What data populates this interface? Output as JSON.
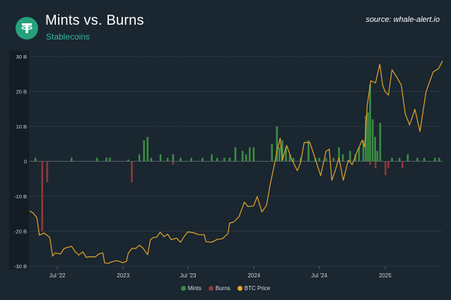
{
  "header": {
    "logo_icon": "tether-logo-icon",
    "title": "Mints vs. Burns",
    "subtitle": "Stablecoins",
    "source": "source: whale-alert.io"
  },
  "colors": {
    "background": "#1a2630",
    "mints": "#3c8c44",
    "burns": "#8c3a3a",
    "btc_price": "#e7a52a",
    "grid": "#3a4650",
    "accent": "#35b8a0"
  },
  "chart_data": {
    "type": "bar",
    "y_axis": {
      "ticks": [
        30,
        20,
        10,
        0,
        -10,
        -20,
        -30
      ],
      "tick_labels": [
        "30 B",
        "20 B",
        "10 B",
        "0",
        "-10 B",
        "-20 B",
        "-30 B"
      ],
      "ylim": [
        -30,
        30
      ],
      "unit": "B"
    },
    "x_axis": {
      "tick_labels": [
        "Jul '22",
        "2023",
        "Jul '23",
        "2024",
        "Jul '24",
        "2025"
      ],
      "tick_dates": [
        "2022-07-01",
        "2023-01-01",
        "2023-07-01",
        "2024-01-01",
        "2024-07-01",
        "2025-01-01"
      ],
      "range": [
        "2022-04-15",
        "2025-06-10"
      ]
    },
    "grid": true,
    "legend_position": "bottom-center",
    "series": [
      {
        "name": "Mints",
        "bar_type": "mints",
        "points": [
          [
            "2022-05-01",
            1
          ],
          [
            "2022-08-10",
            1
          ],
          [
            "2022-10-20",
            1
          ],
          [
            "2022-11-15",
            1
          ],
          [
            "2022-11-25",
            1
          ],
          [
            "2023-01-15",
            0.5
          ],
          [
            "2023-02-15",
            2
          ],
          [
            "2023-02-28",
            6
          ],
          [
            "2023-03-10",
            7
          ],
          [
            "2023-03-20",
            1
          ],
          [
            "2023-04-15",
            2
          ],
          [
            "2023-05-05",
            1
          ],
          [
            "2023-05-20",
            2
          ],
          [
            "2023-06-10",
            1
          ],
          [
            "2023-07-10",
            1
          ],
          [
            "2023-08-10",
            1
          ],
          [
            "2023-09-05",
            2
          ],
          [
            "2023-09-20",
            1
          ],
          [
            "2023-10-10",
            1
          ],
          [
            "2023-10-25",
            1
          ],
          [
            "2023-11-10",
            4
          ],
          [
            "2023-11-30",
            3
          ],
          [
            "2023-12-10",
            2
          ],
          [
            "2023-12-20",
            4
          ],
          [
            "2023-12-31",
            4
          ],
          [
            "2024-02-20",
            5
          ],
          [
            "2024-03-05",
            10
          ],
          [
            "2024-03-12",
            4
          ],
          [
            "2024-03-20",
            6
          ],
          [
            "2024-03-30",
            4
          ],
          [
            "2024-04-10",
            2
          ],
          [
            "2024-04-20",
            1
          ],
          [
            "2024-05-10",
            1
          ],
          [
            "2024-06-01",
            6
          ],
          [
            "2024-06-20",
            1
          ],
          [
            "2024-07-01",
            1
          ],
          [
            "2024-07-20",
            1
          ],
          [
            "2024-08-10",
            1
          ],
          [
            "2024-08-25",
            4
          ],
          [
            "2024-09-05",
            2
          ],
          [
            "2024-09-25",
            3
          ],
          [
            "2024-10-10",
            2
          ],
          [
            "2024-10-20",
            4
          ],
          [
            "2024-11-01",
            6
          ],
          [
            "2024-11-08",
            13
          ],
          [
            "2024-11-14",
            14
          ],
          [
            "2024-11-20",
            22
          ],
          [
            "2024-11-27",
            12
          ],
          [
            "2024-12-04",
            7
          ],
          [
            "2024-12-10",
            3
          ],
          [
            "2024-12-18",
            11
          ],
          [
            "2025-01-20",
            1
          ],
          [
            "2025-02-10",
            1
          ],
          [
            "2025-03-05",
            2
          ],
          [
            "2025-04-01",
            1
          ],
          [
            "2025-04-20",
            1
          ],
          [
            "2025-05-20",
            1
          ],
          [
            "2025-06-01",
            1
          ]
        ]
      },
      {
        "name": "Burns",
        "bar_type": "burns",
        "points": [
          [
            "2022-05-20",
            -20
          ],
          [
            "2022-06-03",
            -6
          ],
          [
            "2023-01-25",
            -6
          ],
          [
            "2023-05-20",
            -1
          ],
          [
            "2024-11-20",
            -1
          ],
          [
            "2024-12-05",
            -2
          ],
          [
            "2025-01-02",
            -4
          ],
          [
            "2025-01-10",
            -2
          ],
          [
            "2025-02-18",
            -2
          ]
        ]
      },
      {
        "name": "BTC Price",
        "line_type": "btc_price",
        "axis_note": "secondary scale, no axis printed",
        "btc_ylim": [
          15000,
          110000
        ],
        "points": [
          [
            "2022-04-15",
            40000
          ],
          [
            "2022-04-25",
            39000
          ],
          [
            "2022-05-05",
            37000
          ],
          [
            "2022-05-12",
            29000
          ],
          [
            "2022-05-25",
            30000
          ],
          [
            "2022-06-10",
            28000
          ],
          [
            "2022-06-18",
            19500
          ],
          [
            "2022-06-25",
            21000
          ],
          [
            "2022-07-10",
            20500
          ],
          [
            "2022-07-20",
            23000
          ],
          [
            "2022-07-30",
            23500
          ],
          [
            "2022-08-10",
            24000
          ],
          [
            "2022-08-20",
            21500
          ],
          [
            "2022-08-30",
            20000
          ],
          [
            "2022-09-10",
            21500
          ],
          [
            "2022-09-20",
            19000
          ],
          [
            "2022-10-01",
            19300
          ],
          [
            "2022-10-15",
            19200
          ],
          [
            "2022-10-25",
            20500
          ],
          [
            "2022-11-05",
            21000
          ],
          [
            "2022-11-10",
            16500
          ],
          [
            "2022-11-20",
            16200
          ],
          [
            "2022-12-01",
            17000
          ],
          [
            "2022-12-15",
            17500
          ],
          [
            "2022-12-31",
            16550
          ],
          [
            "2023-01-10",
            17200
          ],
          [
            "2023-01-15",
            20800
          ],
          [
            "2023-01-25",
            23000
          ],
          [
            "2023-02-05",
            23000
          ],
          [
            "2023-02-15",
            24500
          ],
          [
            "2023-02-25",
            23200
          ],
          [
            "2023-03-10",
            20200
          ],
          [
            "2023-03-18",
            26900
          ],
          [
            "2023-03-25",
            27900
          ],
          [
            "2023-04-05",
            28200
          ],
          [
            "2023-04-14",
            30400
          ],
          [
            "2023-04-25",
            28300
          ],
          [
            "2023-05-05",
            29500
          ],
          [
            "2023-05-15",
            27000
          ],
          [
            "2023-05-30",
            27700
          ],
          [
            "2023-06-10",
            25800
          ],
          [
            "2023-06-20",
            28400
          ],
          [
            "2023-06-30",
            30500
          ],
          [
            "2023-07-15",
            30200
          ],
          [
            "2023-07-30",
            29300
          ],
          [
            "2023-08-15",
            29200
          ],
          [
            "2023-08-20",
            26100
          ],
          [
            "2023-09-05",
            25800
          ],
          [
            "2023-09-20",
            27100
          ],
          [
            "2023-10-05",
            27400
          ],
          [
            "2023-10-20",
            29700
          ],
          [
            "2023-10-25",
            34500
          ],
          [
            "2023-11-05",
            35000
          ],
          [
            "2023-11-20",
            37400
          ],
          [
            "2023-12-05",
            44000
          ],
          [
            "2023-12-15",
            42000
          ],
          [
            "2023-12-31",
            42300
          ],
          [
            "2024-01-10",
            46500
          ],
          [
            "2024-01-23",
            39500
          ],
          [
            "2024-02-05",
            42600
          ],
          [
            "2024-02-15",
            52000
          ],
          [
            "2024-02-28",
            62000
          ],
          [
            "2024-03-05",
            67000
          ],
          [
            "2024-03-14",
            73000
          ],
          [
            "2024-03-20",
            63000
          ],
          [
            "2024-04-01",
            69700
          ],
          [
            "2024-04-15",
            63400
          ],
          [
            "2024-05-01",
            58200
          ],
          [
            "2024-05-10",
            62000
          ],
          [
            "2024-05-20",
            71000
          ],
          [
            "2024-06-05",
            71000
          ],
          [
            "2024-06-25",
            61000
          ],
          [
            "2024-07-05",
            56000
          ],
          [
            "2024-07-20",
            67000
          ],
          [
            "2024-07-29",
            68000
          ],
          [
            "2024-08-05",
            53800
          ],
          [
            "2024-08-15",
            58500
          ],
          [
            "2024-08-25",
            64100
          ],
          [
            "2024-09-06",
            53900
          ],
          [
            "2024-09-20",
            63000
          ],
          [
            "2024-10-01",
            61000
          ],
          [
            "2024-10-15",
            67000
          ],
          [
            "2024-10-29",
            72000
          ],
          [
            "2024-11-05",
            69000
          ],
          [
            "2024-11-12",
            88000
          ],
          [
            "2024-11-22",
            99000
          ],
          [
            "2024-12-05",
            98000
          ],
          [
            "2024-12-17",
            106500
          ],
          [
            "2024-12-25",
            97000
          ],
          [
            "2025-01-01",
            94000
          ],
          [
            "2025-01-10",
            92500
          ],
          [
            "2025-01-20",
            104000
          ],
          [
            "2025-02-01",
            101000
          ],
          [
            "2025-02-15",
            97000
          ],
          [
            "2025-02-26",
            84000
          ],
          [
            "2025-03-10",
            79000
          ],
          [
            "2025-03-25",
            86000
          ],
          [
            "2025-04-08",
            76000
          ],
          [
            "2025-04-25",
            94000
          ],
          [
            "2025-05-15",
            103000
          ],
          [
            "2025-05-30",
            104500
          ],
          [
            "2025-06-10",
            108000
          ]
        ]
      }
    ]
  },
  "legend": {
    "items": [
      {
        "label": "Mints",
        "color": "#3c8c44"
      },
      {
        "label": "Burns",
        "color": "#8c3a3a"
      },
      {
        "label": "BTC Price",
        "color": "#e7a52a"
      }
    ]
  }
}
